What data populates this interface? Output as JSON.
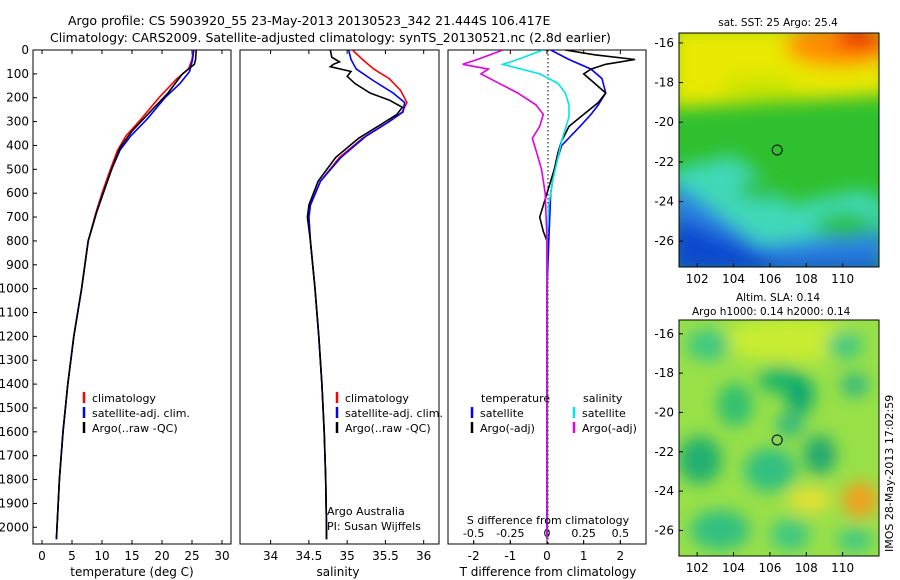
{
  "header": {
    "line1": "Argo profile: CS 5903920_55 23-May-2013 20130523_342 21.444S 106.417E",
    "line2": "Climatology: CARS2009. Satellite-adjusted climatology: synTS_20130521.nc (2.8d earlier)"
  },
  "side_stamp": "IMOS 28-May-2013 17:02:59",
  "chart_data": [
    {
      "id": "temperature",
      "type": "line",
      "xlabel": "temperature (deg C)",
      "ylabel": "",
      "xlim": [
        -1.5,
        31.5
      ],
      "ylim": [
        2070,
        0
      ],
      "xticks": [
        0,
        5,
        10,
        15,
        20,
        25,
        30
      ],
      "yticks": [
        0,
        100,
        200,
        300,
        400,
        500,
        600,
        700,
        800,
        900,
        1000,
        1100,
        1200,
        1300,
        1400,
        1500,
        1600,
        1700,
        1800,
        1900,
        2000
      ],
      "legend": [
        "climatology",
        "satellite-adj. clim.",
        "Argo(..raw -QC)"
      ],
      "legend_position": "lower-center",
      "series": [
        {
          "name": "climatology",
          "color": "#ff0000",
          "points": [
            [
              25.2,
              0
            ],
            [
              25,
              40
            ],
            [
              24.4,
              80
            ],
            [
              22.5,
              120
            ],
            [
              19.5,
              200
            ],
            [
              16.5,
              290
            ],
            [
              14,
              360
            ],
            [
              12.6,
              420
            ],
            [
              11.4,
              500
            ],
            [
              10,
              600
            ],
            [
              9,
              680
            ],
            [
              7.7,
              800
            ],
            [
              6.6,
              1000
            ],
            [
              5.3,
              1200
            ],
            [
              4.3,
              1400
            ],
            [
              3.5,
              1600
            ],
            [
              2.9,
              1800
            ],
            [
              2.5,
              2000
            ],
            [
              2.4,
              2050
            ]
          ]
        },
        {
          "name": "satellite-adj. clim.",
          "color": "#0000ff",
          "points": [
            [
              25.3,
              0
            ],
            [
              25.1,
              40
            ],
            [
              24.6,
              90
            ],
            [
              23,
              140
            ],
            [
              20.5,
              200
            ],
            [
              17.5,
              290
            ],
            [
              14.8,
              360
            ],
            [
              13,
              420
            ],
            [
              11.6,
              500
            ],
            [
              10.2,
              600
            ],
            [
              9.1,
              680
            ],
            [
              7.7,
              800
            ],
            [
              6.6,
              1000
            ],
            [
              5.3,
              1200
            ],
            [
              4.3,
              1400
            ],
            [
              3.5,
              1600
            ],
            [
              2.9,
              1800
            ],
            [
              2.5,
              2000
            ],
            [
              2.4,
              2050
            ]
          ]
        },
        {
          "name": "Argo(..raw -QC)",
          "color": "#000000",
          "points": [
            [
              25.7,
              0
            ],
            [
              25.6,
              40
            ],
            [
              25.4,
              60
            ],
            [
              23.4,
              100
            ],
            [
              21,
              180
            ],
            [
              18,
              260
            ],
            [
              15,
              340
            ],
            [
              13,
              410
            ],
            [
              11.6,
              500
            ],
            [
              10.2,
              600
            ],
            [
              9.1,
              680
            ],
            [
              7.7,
              800
            ],
            [
              6.6,
              1000
            ],
            [
              5.3,
              1200
            ],
            [
              4.3,
              1400
            ],
            [
              3.5,
              1600
            ],
            [
              2.9,
              1800
            ],
            [
              2.5,
              2000
            ],
            [
              2.4,
              2050
            ]
          ]
        }
      ]
    },
    {
      "id": "salinity",
      "type": "line",
      "xlabel": "salinity",
      "ylabel": "",
      "xlim": [
        33.6,
        36.2
      ],
      "ylim": [
        2070,
        0
      ],
      "xticks": [
        34,
        34.5,
        35,
        35.5,
        36
      ],
      "legend": [
        "climatology",
        "satellite-adj. clim.",
        "Argo(..raw -QC)"
      ],
      "legend_position": "lower-right",
      "annotation": [
        "Argo Australia",
        "PI: Susan Wijffels"
      ],
      "series": [
        {
          "name": "climatology",
          "color": "#ff0000",
          "points": [
            [
              35.07,
              0
            ],
            [
              35.2,
              40
            ],
            [
              35.35,
              80
            ],
            [
              35.55,
              120
            ],
            [
              35.7,
              170
            ],
            [
              35.78,
              220
            ],
            [
              35.72,
              260
            ],
            [
              35.5,
              310
            ],
            [
              35.2,
              370
            ],
            [
              34.9,
              450
            ],
            [
              34.65,
              550
            ],
            [
              34.52,
              650
            ],
            [
              34.5,
              700
            ],
            [
              34.52,
              800
            ],
            [
              34.58,
              1000
            ],
            [
              34.63,
              1200
            ],
            [
              34.67,
              1400
            ],
            [
              34.7,
              1600
            ],
            [
              34.72,
              1800
            ],
            [
              34.73,
              2000
            ],
            [
              34.73,
              2050
            ]
          ]
        },
        {
          "name": "satellite-adj. clim.",
          "color": "#0000ff",
          "points": [
            [
              35.02,
              0
            ],
            [
              35.05,
              40
            ],
            [
              35.12,
              80
            ],
            [
              35.35,
              130
            ],
            [
              35.6,
              180
            ],
            [
              35.75,
              220
            ],
            [
              35.73,
              260
            ],
            [
              35.55,
              300
            ],
            [
              35.25,
              360
            ],
            [
              34.92,
              450
            ],
            [
              34.65,
              550
            ],
            [
              34.52,
              650
            ],
            [
              34.5,
              700
            ],
            [
              34.52,
              800
            ],
            [
              34.58,
              1000
            ],
            [
              34.63,
              1200
            ],
            [
              34.67,
              1400
            ],
            [
              34.7,
              1600
            ],
            [
              34.72,
              1800
            ],
            [
              34.73,
              2000
            ],
            [
              34.73,
              2050
            ]
          ]
        },
        {
          "name": "Argo(..raw -QC)",
          "color": "#000000",
          "points": [
            [
              34.78,
              0
            ],
            [
              34.8,
              30
            ],
            [
              34.9,
              50
            ],
            [
              34.82,
              60
            ],
            [
              34.78,
              70
            ],
            [
              34.92,
              80
            ],
            [
              35.05,
              90
            ],
            [
              35.0,
              110
            ],
            [
              35.1,
              140
            ],
            [
              35.3,
              180
            ],
            [
              35.55,
              210
            ],
            [
              35.72,
              240
            ],
            [
              35.65,
              270
            ],
            [
              35.45,
              310
            ],
            [
              35.15,
              370
            ],
            [
              34.85,
              450
            ],
            [
              34.62,
              550
            ],
            [
              34.5,
              650
            ],
            [
              34.48,
              700
            ],
            [
              34.52,
              800
            ],
            [
              34.58,
              1000
            ],
            [
              34.63,
              1200
            ],
            [
              34.67,
              1400
            ],
            [
              34.7,
              1600
            ],
            [
              34.72,
              1800
            ],
            [
              34.73,
              2000
            ],
            [
              34.73,
              2050
            ]
          ]
        }
      ]
    },
    {
      "id": "difference",
      "type": "line",
      "xlabel": "T difference from climatology",
      "xlabel_top": "S difference from climatology",
      "ylabel": "",
      "xlim": [
        -2.7,
        2.7
      ],
      "ylim": [
        2070,
        0
      ],
      "xticks": [
        -2,
        -1,
        0,
        1,
        2
      ],
      "sticks": [
        -0.5,
        -0.25,
        0,
        0.25,
        0.5
      ],
      "legend_groups": [
        {
          "title": "temperature",
          "items": [
            "satellite",
            "Argo(-adj)"
          ]
        },
        {
          "title": "salinity",
          "items": [
            "satellite",
            "Argo(-adj)"
          ]
        }
      ],
      "series": [
        {
          "name": "satellite",
          "group": "temperature",
          "color": "#0000ff",
          "points": [
            [
              0.1,
              0
            ],
            [
              0.6,
              40
            ],
            [
              1.2,
              80
            ],
            [
              1.5,
              120
            ],
            [
              1.6,
              180
            ],
            [
              1.4,
              230
            ],
            [
              1.2,
              270
            ],
            [
              0.9,
              320
            ],
            [
              0.4,
              400
            ],
            [
              0.2,
              500
            ],
            [
              0.1,
              600
            ],
            [
              0.05,
              800
            ],
            [
              0,
              1000
            ],
            [
              0,
              1500
            ],
            [
              0,
              2050
            ]
          ]
        },
        {
          "name": "Argo(-adj)",
          "group": "temperature",
          "color": "#000000",
          "points": [
            [
              0.5,
              0
            ],
            [
              1.3,
              20
            ],
            [
              2.4,
              40
            ],
            [
              1.6,
              60
            ],
            [
              1.2,
              80
            ],
            [
              1.0,
              100
            ],
            [
              1.3,
              140
            ],
            [
              1.6,
              180
            ],
            [
              1.4,
              220
            ],
            [
              1.0,
              270
            ],
            [
              0.6,
              320
            ],
            [
              0.4,
              380
            ],
            [
              0.3,
              430
            ],
            [
              0.2,
              500
            ],
            [
              0,
              600
            ],
            [
              -0.2,
              700
            ],
            [
              -0.1,
              760
            ],
            [
              0,
              800
            ],
            [
              0,
              1000
            ],
            [
              0,
              1500
            ],
            [
              0,
              2050
            ]
          ]
        },
        {
          "name": "satellite",
          "group": "salinity",
          "color": "#00e5e5",
          "points": [
            [
              -0.1,
              0
            ],
            [
              -0.8,
              40
            ],
            [
              -1.2,
              60
            ],
            [
              -0.7,
              80
            ],
            [
              -0.2,
              100
            ],
            [
              0.3,
              140
            ],
            [
              0.5,
              180
            ],
            [
              0.6,
              230
            ],
            [
              0.6,
              280
            ],
            [
              0.5,
              330
            ],
            [
              0.4,
              380
            ],
            [
              0.3,
              450
            ],
            [
              0.15,
              550
            ],
            [
              0.05,
              650
            ],
            [
              0,
              800
            ],
            [
              0,
              1000
            ],
            [
              0,
              1500
            ],
            [
              0,
              2050
            ]
          ]
        },
        {
          "name": "Argo(-adj)",
          "group": "salinity",
          "color": "#e000e0",
          "points": [
            [
              -1.2,
              0
            ],
            [
              -1.9,
              40
            ],
            [
              -2.3,
              60
            ],
            [
              -1.6,
              80
            ],
            [
              -1.8,
              100
            ],
            [
              -1.3,
              140
            ],
            [
              -0.8,
              180
            ],
            [
              -0.3,
              230
            ],
            [
              -0.1,
              270
            ],
            [
              -0.2,
              320
            ],
            [
              -0.4,
              370
            ],
            [
              -0.3,
              420
            ],
            [
              -0.15,
              500
            ],
            [
              -0.05,
              600
            ],
            [
              0,
              800
            ],
            [
              0,
              1000
            ],
            [
              0,
              1500
            ],
            [
              0,
              2050
            ]
          ]
        }
      ]
    },
    {
      "id": "sst_map",
      "type": "heatmap",
      "title": "sat. SST: 25 Argo: 25.4",
      "xlim": [
        101,
        112
      ],
      "ylim": [
        -27.3,
        -15.5
      ],
      "xticks": [
        102,
        104,
        106,
        108,
        110
      ],
      "yticks": [
        -16,
        -18,
        -20,
        -22,
        -24,
        -26
      ],
      "marker": {
        "lon": 106.4,
        "lat": -21.4
      },
      "color_regions": [
        {
          "label": "warm",
          "color": "#e8e800"
        },
        {
          "label": "hot",
          "color": "#ff8c00"
        },
        {
          "label": "mid",
          "color": "#2fc02f"
        },
        {
          "label": "cool",
          "color": "#40d8b8"
        },
        {
          "label": "cold",
          "color": "#1060e0"
        }
      ]
    },
    {
      "id": "sla_map",
      "type": "heatmap",
      "title": "Altim. SLA: 0.14",
      "subtitle": "Argo h1000: 0.14 h2000: 0.14",
      "xlim": [
        101,
        112
      ],
      "ylim": [
        -27.3,
        -15.3
      ],
      "xticks": [
        102,
        104,
        106,
        108,
        110
      ],
      "yticks": [
        -16,
        -18,
        -20,
        -22,
        -24,
        -26
      ],
      "marker": {
        "lon": 106.4,
        "lat": -21.4
      }
    }
  ]
}
